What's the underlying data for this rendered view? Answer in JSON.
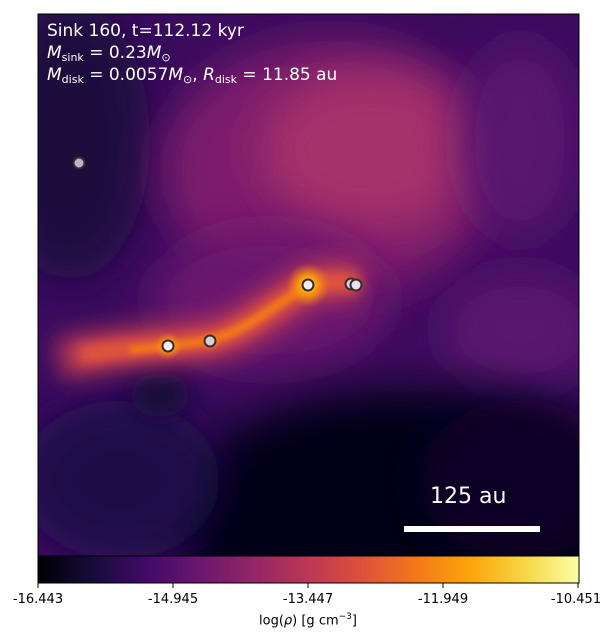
{
  "annotation": {
    "title": "Sink 160, t=112.12 kyr",
    "msink_symbol": "M",
    "msink_sub": "sink",
    "msink_value": " = 0.23",
    "msun_symbol": "M",
    "msun_sub": "⊙",
    "mdisk_symbol": "M",
    "mdisk_sub": "disk",
    "mdisk_value": " = 0.0057",
    "rdisk_sep": ", ",
    "rdisk_symbol": "R",
    "rdisk_sub": "disk",
    "rdisk_value": " = 11.85 au"
  },
  "scale_bar": {
    "label": "125 au"
  },
  "colorbar": {
    "colormap": "inferno",
    "ticks": [
      "-16.443",
      "-14.945",
      "-13.447",
      "-11.949",
      "-10.451"
    ],
    "label_prefix": "log(",
    "label_rho": "ρ",
    "label_units": ") [g cm",
    "label_exp": "−3",
    "label_end": "]"
  },
  "colors": {
    "frame": "#000000",
    "background_dark": "#0b0626",
    "filament_core": "#fcbf3a",
    "sink_fill": "#e8e2ea",
    "sink_edge": "#3a2a2e"
  }
}
